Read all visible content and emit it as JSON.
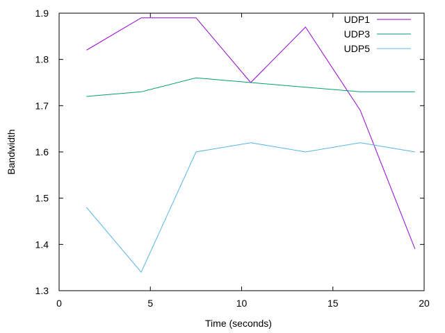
{
  "chart_data": {
    "type": "line",
    "title": "",
    "xlabel": "Time (seconds)",
    "ylabel": "Bandwidth",
    "xlim": [
      0,
      20
    ],
    "ylim": [
      1.3,
      1.9
    ],
    "xticks": [
      0,
      5,
      10,
      15,
      20
    ],
    "xtick_labels": [
      "0",
      "5",
      "10",
      "15",
      "20"
    ],
    "yticks": [
      1.3,
      1.4,
      1.5,
      1.6,
      1.7,
      1.8,
      1.9
    ],
    "ytick_labels": [
      "1.3",
      "1.4",
      "1.5",
      "1.6",
      "1.7",
      "1.8",
      "1.9"
    ],
    "grid": false,
    "legend_position": "top-right",
    "x": [
      1.5,
      4.5,
      7.5,
      10.5,
      13.5,
      16.5,
      19.5
    ],
    "series": [
      {
        "name": "UDP1",
        "color": "#9400d3",
        "values": [
          1.82,
          1.89,
          1.89,
          1.75,
          1.87,
          1.69,
          1.39
        ]
      },
      {
        "name": "UDP3",
        "color": "#009e73",
        "values": [
          1.72,
          1.73,
          1.76,
          1.75,
          1.74,
          1.73,
          1.73
        ]
      },
      {
        "name": "UDP5",
        "color": "#56b4e9",
        "values": [
          1.48,
          1.34,
          1.6,
          1.62,
          1.6,
          1.62,
          1.6
        ]
      }
    ]
  }
}
